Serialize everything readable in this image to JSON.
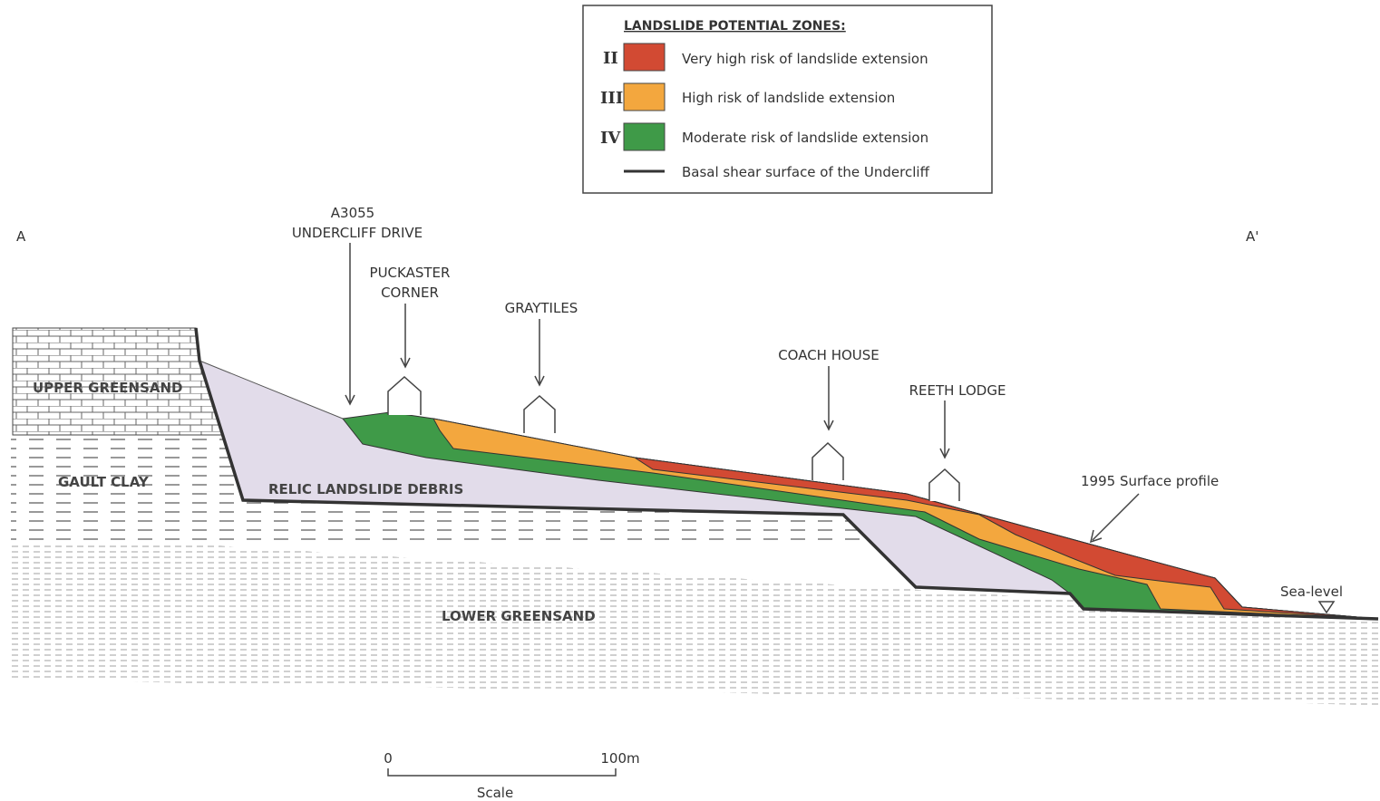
{
  "legend": {
    "title": "LANDSLIDE POTENTIAL ZONES:",
    "items": [
      {
        "zone": "II",
        "label": "Very high risk of landslide extension"
      },
      {
        "zone": "III",
        "label": "High risk of landslide extension"
      },
      {
        "zone": "IV",
        "label": "Moderate risk of landslide extension"
      },
      {
        "label": "Basal shear surface of the Undercliff"
      }
    ]
  },
  "section": {
    "start": "A",
    "end": "A'"
  },
  "places": [
    {
      "lines": [
        "A3055",
        "UNDERCLIFF DRIVE"
      ]
    },
    {
      "lines": [
        "PUCKASTER",
        "CORNER"
      ]
    },
    {
      "lines": [
        "GRAYTILES"
      ]
    },
    {
      "lines": [
        "COACH HOUSE"
      ]
    },
    {
      "lines": [
        "REETH LODGE"
      ]
    }
  ],
  "annotations": {
    "surface": "1995 Surface profile",
    "sea_level": "Sea-level"
  },
  "layers": [
    "UPPER GREENSAND",
    "GAULT CLAY",
    "RELIC LANDSLIDE DEBRIS",
    "LOWER GREENSAND"
  ],
  "scale": {
    "start": "0",
    "end": "100m",
    "label": "Scale"
  }
}
